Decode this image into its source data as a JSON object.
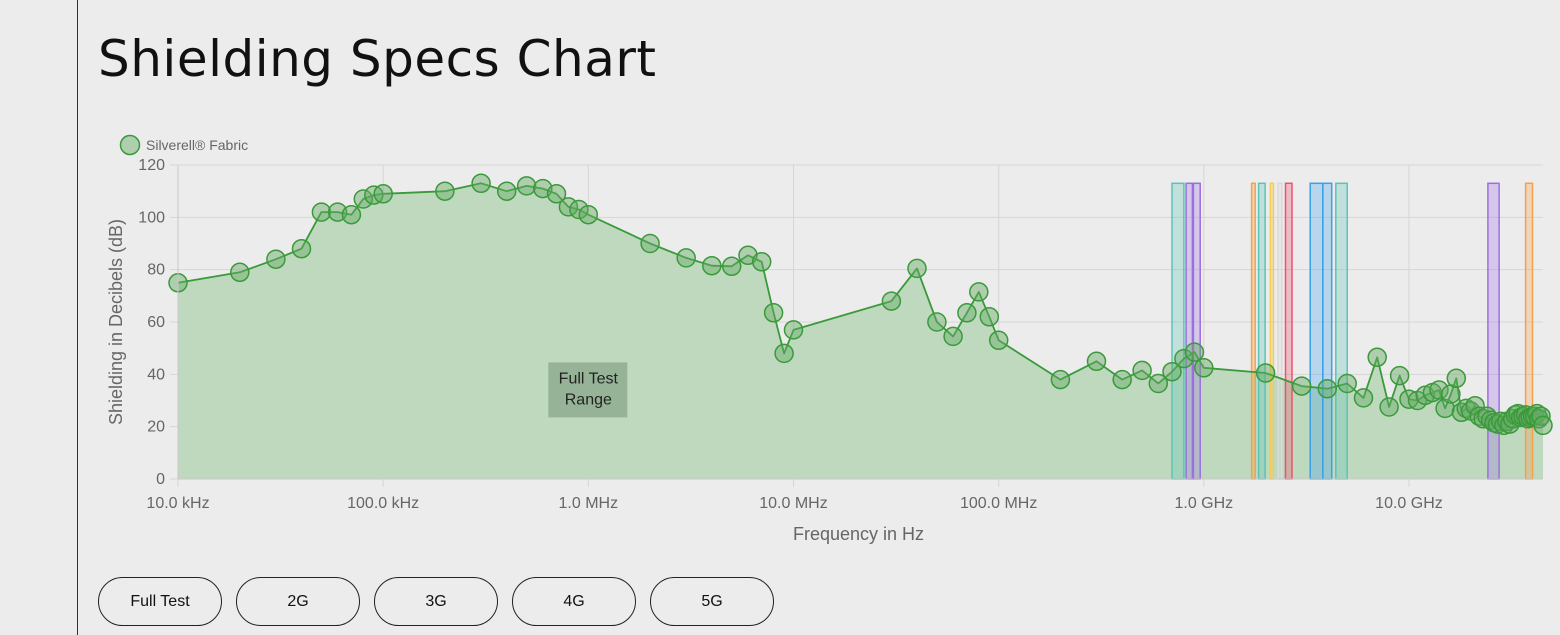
{
  "page": {
    "title": "Shielding Specs Chart"
  },
  "chart_data": {
    "type": "area",
    "xscale": "log",
    "xlim": [
      10000,
      45000000000
    ],
    "ylim": [
      0,
      120
    ],
    "xlabel": "Frequency in Hz",
    "ylabel": "Shielding in Decibels (dB)",
    "x_ticks": [
      {
        "value": 10000,
        "label": "10.0 kHz"
      },
      {
        "value": 100000,
        "label": "100.0 kHz"
      },
      {
        "value": 1000000,
        "label": "1.0 MHz"
      },
      {
        "value": 10000000,
        "label": "10.0 MHz"
      },
      {
        "value": 100000000,
        "label": "100.0 MHz"
      },
      {
        "value": 1000000000,
        "label": "1.0 GHz"
      },
      {
        "value": 10000000000,
        "label": "10.0 GHz"
      }
    ],
    "y_ticks": [
      0,
      20,
      40,
      60,
      80,
      100,
      120
    ],
    "grid": true,
    "legend_position": "top-left",
    "series": [
      {
        "name": "Silverell® Fabric",
        "color": "#3a9a3a",
        "fill": "#bfd9bf",
        "points": [
          [
            10000,
            75
          ],
          [
            20000,
            79
          ],
          [
            30000,
            84
          ],
          [
            40000,
            88
          ],
          [
            50000,
            102
          ],
          [
            60000,
            102
          ],
          [
            70000,
            101
          ],
          [
            80000,
            107
          ],
          [
            90000,
            108.5
          ],
          [
            100000,
            109
          ],
          [
            200000,
            110
          ],
          [
            300000,
            113
          ],
          [
            400000,
            110
          ],
          [
            500000,
            112
          ],
          [
            600000,
            111
          ],
          [
            700000,
            109
          ],
          [
            800000,
            104
          ],
          [
            900000,
            103
          ],
          [
            1000000,
            101
          ],
          [
            2000000,
            90
          ],
          [
            3000000,
            84.5
          ],
          [
            4000000,
            81.5
          ],
          [
            5000000,
            81.3
          ],
          [
            6000000,
            85.5
          ],
          [
            7000000,
            83
          ],
          [
            8000000,
            63.5
          ],
          [
            9000000,
            48
          ],
          [
            10000000,
            57
          ],
          [
            30000000,
            68
          ],
          [
            40000000,
            80.5
          ],
          [
            50000000,
            60
          ],
          [
            60000000,
            54.5
          ],
          [
            70000000,
            63.5
          ],
          [
            80000000,
            71.5
          ],
          [
            90000000,
            62
          ],
          [
            100000000,
            53
          ],
          [
            200000000,
            38
          ],
          [
            300000000,
            45
          ],
          [
            400000000,
            38
          ],
          [
            500000000,
            41.5
          ],
          [
            600000000,
            36.5
          ],
          [
            700000000,
            41
          ],
          [
            800000000,
            46
          ],
          [
            900000000,
            48.5
          ],
          [
            1000000000,
            42.5
          ],
          [
            2000000000,
            40.5
          ],
          [
            3000000000,
            35.5
          ],
          [
            4000000000,
            34.5
          ],
          [
            5000000000,
            36.5
          ],
          [
            6000000000,
            31
          ],
          [
            7000000000,
            46.5
          ],
          [
            8000000000,
            27.5
          ],
          [
            9000000000,
            39.5
          ],
          [
            10000000000,
            30.5
          ],
          [
            11000000000,
            30
          ],
          [
            12000000000,
            32
          ],
          [
            13000000000,
            33
          ],
          [
            14000000000,
            34
          ],
          [
            15000000000,
            27
          ],
          [
            16000000000,
            32.5
          ],
          [
            17000000000,
            38.5
          ],
          [
            18000000000,
            25.5
          ],
          [
            19000000000,
            27
          ],
          [
            20000000000,
            26
          ],
          [
            21000000000,
            28
          ],
          [
            22000000000,
            24
          ],
          [
            23000000000,
            23
          ],
          [
            24000000000,
            24
          ],
          [
            25000000000,
            22.5
          ],
          [
            26000000000,
            21.5
          ],
          [
            27000000000,
            21
          ],
          [
            28000000000,
            22
          ],
          [
            29000000000,
            20.5
          ],
          [
            30000000000,
            22
          ],
          [
            31000000000,
            21
          ],
          [
            32000000000,
            23
          ],
          [
            33000000000,
            24.5
          ],
          [
            34000000000,
            25
          ],
          [
            35000000000,
            23.5
          ],
          [
            36000000000,
            24
          ],
          [
            37000000000,
            24.5
          ],
          [
            38000000000,
            23
          ],
          [
            39000000000,
            23.5
          ],
          [
            40000000000,
            24
          ],
          [
            41000000000,
            24
          ],
          [
            42000000000,
            25
          ],
          [
            43000000000,
            23
          ],
          [
            44000000000,
            24
          ],
          [
            45000000000,
            20.5
          ]
        ]
      }
    ],
    "annotations": [
      {
        "text": "Full Test Range",
        "x": 1000000,
        "y": 35
      }
    ],
    "bands": [
      {
        "x0": 700000000,
        "x1": 800000000,
        "color": "#5cc4b5"
      },
      {
        "x0": 820000000,
        "x1": 890000000,
        "color": "#9b6fe0"
      },
      {
        "x0": 880000000,
        "x1": 960000000,
        "color": "#9b6fe0"
      },
      {
        "x0": 1710000000,
        "x1": 1780000000,
        "color": "#f5a04a"
      },
      {
        "x0": 1850000000,
        "x1": 1990000000,
        "color": "#5cc4b5"
      },
      {
        "x0": 2110000000,
        "x1": 2170000000,
        "color": "#f2cc55"
      },
      {
        "x0": 2300000000,
        "x1": 2400000000,
        "color": "#d9d9d9"
      },
      {
        "x0": 2500000000,
        "x1": 2690000000,
        "color": "#f0506e"
      },
      {
        "x0": 3300000000,
        "x1": 3800000000,
        "color": "#3aa0e8"
      },
      {
        "x0": 3800000000,
        "x1": 4200000000,
        "color": "#3aa0e8"
      },
      {
        "x0": 4400000000,
        "x1": 5000000000,
        "color": "#5cc4b5"
      },
      {
        "x0": 24250000000,
        "x1": 27500000000,
        "color": "#9b6fe0"
      },
      {
        "x0": 37000000000,
        "x1": 40000000000,
        "color": "#f5a04a"
      }
    ]
  },
  "tabs": [
    {
      "label": "Full Test"
    },
    {
      "label": "2G"
    },
    {
      "label": "3G"
    },
    {
      "label": "4G"
    },
    {
      "label": "5G"
    }
  ]
}
